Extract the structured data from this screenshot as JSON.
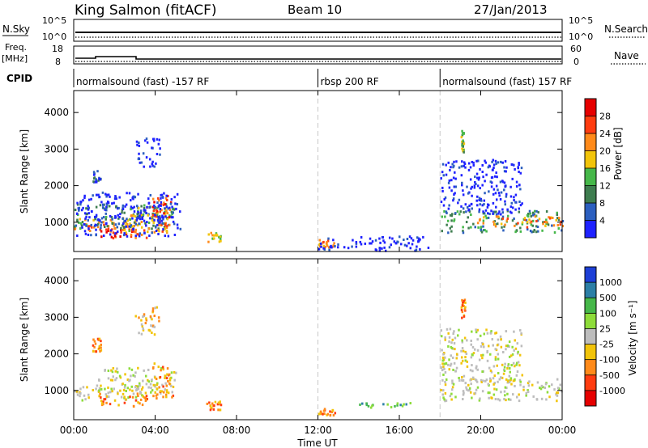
{
  "header": {
    "station": "King Salmon (fitACF)",
    "beam": "Beam 10",
    "date": "27/Jan/2013"
  },
  "top_panels": {
    "nsky": {
      "label": "N.Sky",
      "tick_top": "10^5",
      "tick_bottom": "10^0"
    },
    "nsearch": {
      "label": "N.Search",
      "tick_top": "10^5",
      "tick_bottom": "10^0"
    },
    "freq": {
      "label_line1": "Freq.",
      "label_line2": "[MHz]",
      "tick_top": "18",
      "tick_bottom": "8"
    },
    "nave": {
      "label": "Nave",
      "tick_top": "60",
      "tick_bottom": "0"
    },
    "cpid": {
      "label": "CPID",
      "segments": [
        {
          "text": "normalsound (fast) -157 RF",
          "start_hour": 0
        },
        {
          "text": "rbsp 200 RF",
          "start_hour": 12
        },
        {
          "text": "normalsound (fast) 157 RF",
          "start_hour": 18
        }
      ]
    }
  },
  "chart_data": [
    {
      "type": "heatmap",
      "quantity": "Power",
      "ylabel": "Slant Range [km]",
      "xlabel": "Time UT",
      "xlim": [
        0,
        24
      ],
      "ylim": [
        200,
        4600
      ],
      "yticks": [
        1000,
        2000,
        3000,
        4000
      ],
      "xtick_labels": [
        "00:00",
        "04:00",
        "08:00",
        "12:00",
        "16:00",
        "20:00",
        "00:00"
      ],
      "colorbar": {
        "label": "Power [dB]",
        "tick_labels": [
          "4",
          "8",
          "12",
          "16",
          "20",
          "24",
          "28"
        ],
        "colors": [
          "#1f22ff",
          "#2c5fbf",
          "#3e7d4f",
          "#46b84a",
          "#f2c40a",
          "#ff8a1a",
          "#ff3c10",
          "#e60000"
        ]
      },
      "regions": [
        {
          "t0": 0.0,
          "t1": 3.0,
          "r0": 700,
          "r1": 1100,
          "level": 5
        },
        {
          "t0": 1.0,
          "t1": 3.6,
          "r0": 550,
          "r1": 900,
          "level": 6
        },
        {
          "t0": 0.0,
          "t1": 4.9,
          "r0": 800,
          "r1": 1500,
          "level": 2
        },
        {
          "t0": 2.5,
          "t1": 4.7,
          "r0": 700,
          "r1": 1400,
          "level": 4
        },
        {
          "t0": 3.8,
          "t1": 4.8,
          "r0": 700,
          "r1": 1750,
          "level": 6
        },
        {
          "t0": 0.1,
          "t1": 5.2,
          "r0": 600,
          "r1": 1800,
          "level": 0
        },
        {
          "t0": 0.9,
          "t1": 1.3,
          "r0": 2050,
          "r1": 2400,
          "level": 1
        },
        {
          "t0": 3.0,
          "t1": 4.2,
          "r0": 2500,
          "r1": 3300,
          "level": 0
        },
        {
          "t0": 6.5,
          "t1": 7.2,
          "r0": 450,
          "r1": 700,
          "level": 4
        },
        {
          "t0": 12.0,
          "t1": 12.8,
          "r0": 300,
          "r1": 500,
          "level": 5
        },
        {
          "t0": 12.0,
          "t1": 17.5,
          "r0": 200,
          "r1": 600,
          "level": 0
        },
        {
          "t0": 18.0,
          "t1": 24.0,
          "r0": 700,
          "r1": 1300,
          "level": 2
        },
        {
          "t0": 19.5,
          "t1": 24.0,
          "r0": 850,
          "r1": 1150,
          "level": 5
        },
        {
          "t0": 18.0,
          "t1": 22.0,
          "r0": 1200,
          "r1": 2700,
          "level": 0
        },
        {
          "t0": 19.0,
          "t1": 19.2,
          "r0": 2900,
          "r1": 3500,
          "level": 3
        }
      ]
    },
    {
      "type": "heatmap",
      "quantity": "Velocity",
      "ylabel": "Slant Range [km]",
      "xlabel": "Time UT",
      "xlim": [
        0,
        24
      ],
      "ylim": [
        200,
        4600
      ],
      "yticks": [
        1000,
        2000,
        3000,
        4000
      ],
      "xtick_labels": [
        "00:00",
        "04:00",
        "08:00",
        "12:00",
        "16:00",
        "20:00",
        "00:00"
      ],
      "colorbar": {
        "label": "Velocity [m s⁻¹]",
        "tick_labels": [
          "1000",
          "500",
          "100",
          "25",
          "-25",
          "-100",
          "-500",
          "-1000"
        ],
        "colors": [
          "#1d3fd6",
          "#2c7fa6",
          "#46b84a",
          "#8edc3a",
          "#bdbdbd",
          "#f2c40a",
          "#ff8a1a",
          "#ff3c10",
          "#e60000"
        ]
      },
      "regions": [
        {
          "t0": 0.0,
          "t1": 3.5,
          "r0": 700,
          "r1": 1100,
          "level": 4
        },
        {
          "t0": 1.0,
          "t1": 3.6,
          "r0": 550,
          "r1": 900,
          "level": 6
        },
        {
          "t0": 1.0,
          "t1": 5.0,
          "r0": 900,
          "r1": 1600,
          "level": 4
        },
        {
          "t0": 3.8,
          "t1": 4.9,
          "r0": 700,
          "r1": 1750,
          "level": 6
        },
        {
          "t0": 0.9,
          "t1": 1.3,
          "r0": 2050,
          "r1": 2400,
          "level": 6
        },
        {
          "t0": 3.0,
          "t1": 4.2,
          "r0": 2500,
          "r1": 3300,
          "level": 5
        },
        {
          "t0": 6.5,
          "t1": 7.2,
          "r0": 450,
          "r1": 700,
          "level": 6
        },
        {
          "t0": 12.0,
          "t1": 12.8,
          "r0": 300,
          "r1": 500,
          "level": 6
        },
        {
          "t0": 14.0,
          "t1": 16.5,
          "r0": 500,
          "r1": 650,
          "level": 2
        },
        {
          "t0": 18.0,
          "t1": 24.0,
          "r0": 700,
          "r1": 1300,
          "level": 4
        },
        {
          "t0": 18.0,
          "t1": 22.0,
          "r0": 1200,
          "r1": 2700,
          "level": 4
        },
        {
          "t0": 19.0,
          "t1": 19.2,
          "r0": 2900,
          "r1": 3500,
          "level": 6
        }
      ]
    }
  ]
}
